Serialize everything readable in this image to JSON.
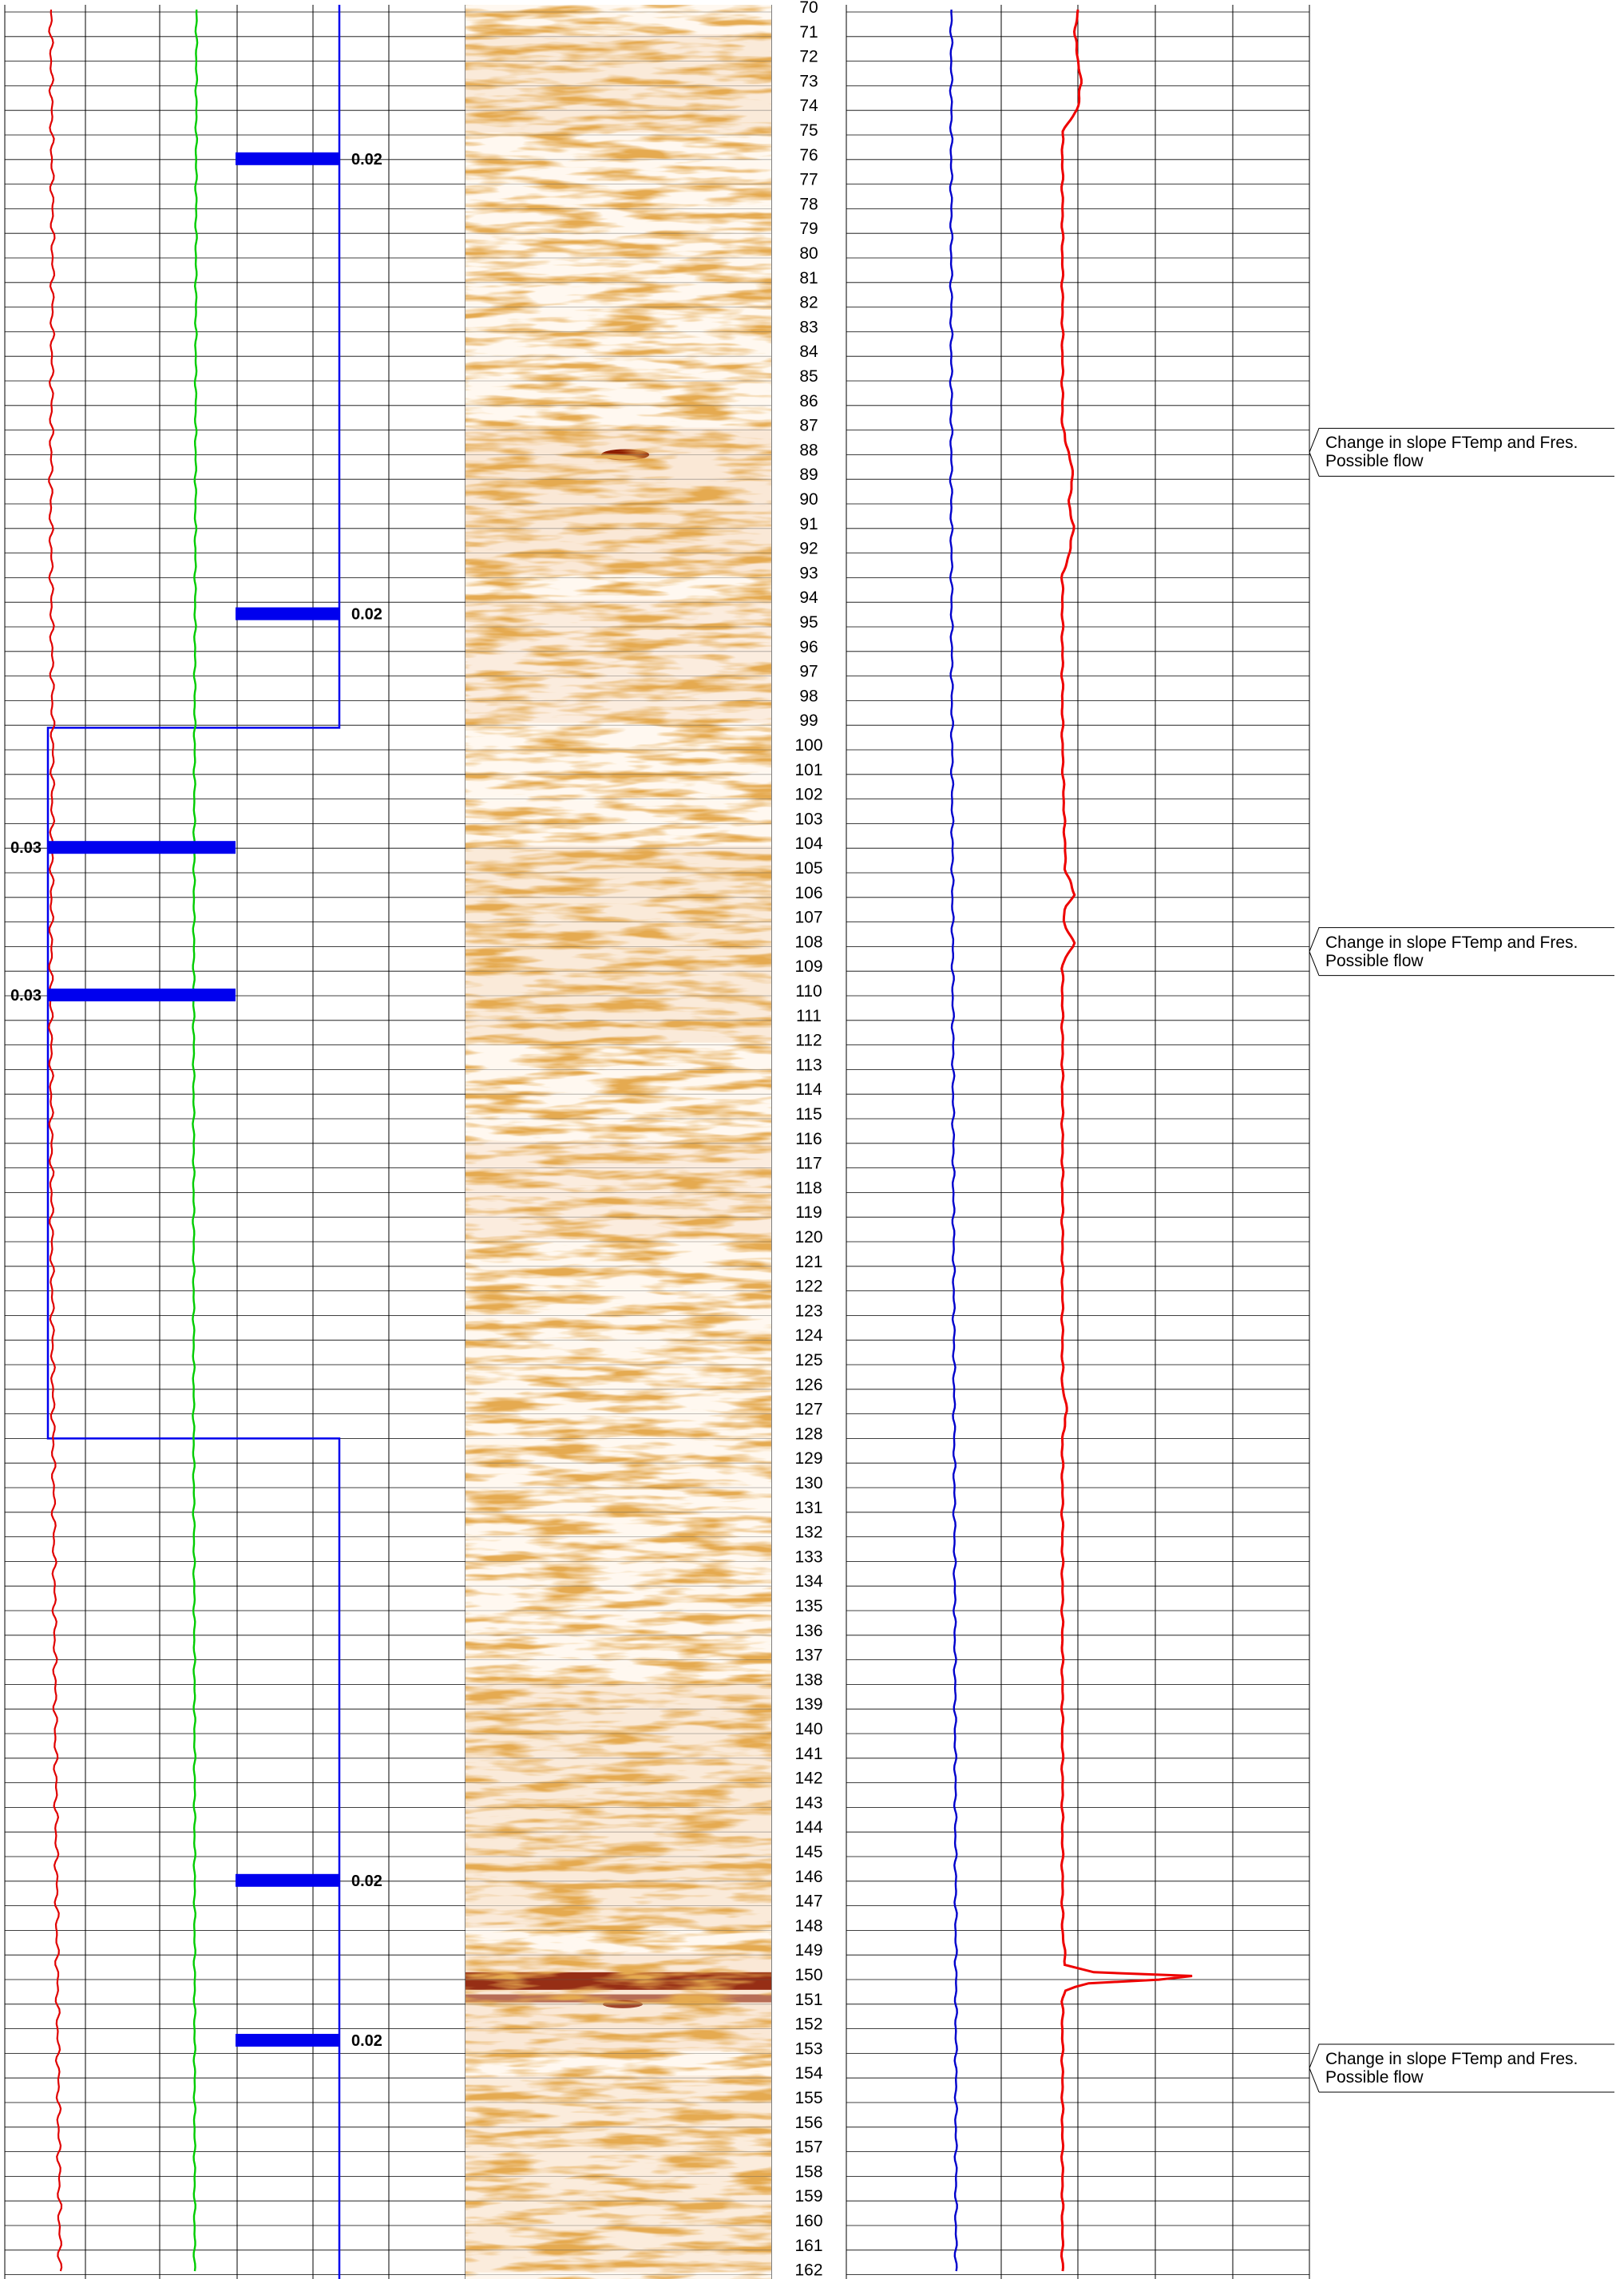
{
  "colors": {
    "grid": "#000000",
    "curve_left": "#e00000",
    "curve_green": "#00cc00",
    "bars": "#0000ee",
    "box": "#0000ee",
    "temp_curve": "#0000cc",
    "res_curve": "#ee0000",
    "image_light": "#fff7ee",
    "image_mid": "#e0a060",
    "image_dark": "#8b1a00"
  },
  "chart_data": {
    "type": "line",
    "depth_range": [
      70,
      162
    ],
    "depth_ticks": [
      70,
      71,
      72,
      73,
      74,
      75,
      76,
      77,
      78,
      79,
      80,
      81,
      82,
      83,
      84,
      85,
      86,
      87,
      88,
      89,
      90,
      91,
      92,
      93,
      94,
      95,
      96,
      97,
      98,
      99,
      100,
      101,
      102,
      103,
      104,
      105,
      106,
      107,
      108,
      109,
      110,
      111,
      112,
      113,
      114,
      115,
      116,
      117,
      118,
      119,
      120,
      121,
      122,
      123,
      124,
      125,
      126,
      127,
      128,
      129,
      130,
      131,
      132,
      133,
      134,
      135,
      136,
      137,
      138,
      139,
      140,
      141,
      142,
      143,
      144,
      145,
      146,
      147,
      148,
      149,
      150,
      151,
      152,
      153,
      154,
      155,
      156,
      157,
      158,
      159,
      160,
      161,
      162
    ],
    "bars": [
      {
        "depth": 76,
        "value_label": "0.02",
        "side": "right"
      },
      {
        "depth": 94.5,
        "value_label": "0.02",
        "side": "right"
      },
      {
        "depth": 104,
        "value_label": "0.03",
        "side": "left"
      },
      {
        "depth": 110,
        "value_label": "0.03",
        "side": "left"
      },
      {
        "depth": 146,
        "value_label": "0.02",
        "side": "right"
      },
      {
        "depth": 152.5,
        "value_label": "0.02",
        "side": "right"
      }
    ],
    "box_interval": {
      "top_depth": 99.2,
      "bottom_depth": 128
    },
    "series": [
      {
        "values": [
          [
            70,
            0.5
          ],
          [
            80,
            0.52
          ],
          [
            90,
            0.5
          ],
          [
            100,
            0.52
          ],
          [
            110,
            0.5
          ],
          [
            120,
            0.51
          ],
          [
            130,
            0.53
          ],
          [
            140,
            0.55
          ],
          [
            150,
            0.57
          ],
          [
            162,
            0.6
          ]
        ]
      },
      {
        "values": [
          [
            70,
            2.08
          ],
          [
            90,
            2.07
          ],
          [
            100,
            2.06
          ],
          [
            110,
            2.05
          ],
          [
            128,
            2.05
          ],
          [
            140,
            2.06
          ],
          [
            150,
            2.06
          ],
          [
            162,
            2.06
          ]
        ]
      },
      {
        "values": [
          [
            70,
            0.68
          ],
          [
            90,
            0.68
          ],
          [
            110,
            0.69
          ],
          [
            130,
            0.7
          ],
          [
            150,
            0.71
          ],
          [
            162,
            0.71
          ]
        ]
      },
      {
        "values": [
          [
            70,
            1.5
          ],
          [
            71,
            1.48
          ],
          [
            72,
            1.5
          ],
          [
            73,
            1.52
          ],
          [
            74,
            1.5
          ],
          [
            74.8,
            1.42
          ],
          [
            75,
            1.4
          ],
          [
            80,
            1.4
          ],
          [
            86,
            1.4
          ],
          [
            87,
            1.4
          ],
          [
            88,
            1.44
          ],
          [
            89,
            1.47
          ],
          [
            90,
            1.44
          ],
          [
            91,
            1.47
          ],
          [
            92,
            1.45
          ],
          [
            93,
            1.4
          ],
          [
            100,
            1.4
          ],
          [
            105,
            1.42
          ],
          [
            106,
            1.48
          ],
          [
            106.5,
            1.42
          ],
          [
            107,
            1.4
          ],
          [
            107.5,
            1.44
          ],
          [
            108,
            1.48
          ],
          [
            108.5,
            1.42
          ],
          [
            109,
            1.4
          ],
          [
            120,
            1.4
          ],
          [
            126,
            1.4
          ],
          [
            127,
            1.43
          ],
          [
            128,
            1.4
          ],
          [
            140,
            1.4
          ],
          [
            148,
            1.4
          ],
          [
            149.5,
            1.42
          ],
          [
            149.8,
            1.6
          ],
          [
            150,
            2.45
          ],
          [
            150.2,
            1.6
          ],
          [
            150.5,
            1.42
          ],
          [
            151,
            1.4
          ],
          [
            162,
            1.4
          ]
        ]
      }
    ]
  },
  "annotations": [
    {
      "depth": 88,
      "line1": "Change in slope FTemp and Fres.",
      "line2": "Possible flow"
    },
    {
      "depth": 108.3,
      "line1": "Change in slope FTemp and Fres.",
      "line2": "Possible flow"
    },
    {
      "depth": 153.7,
      "line1": "Change in slope FTemp and Fres.",
      "line2": "Possible flow"
    }
  ]
}
